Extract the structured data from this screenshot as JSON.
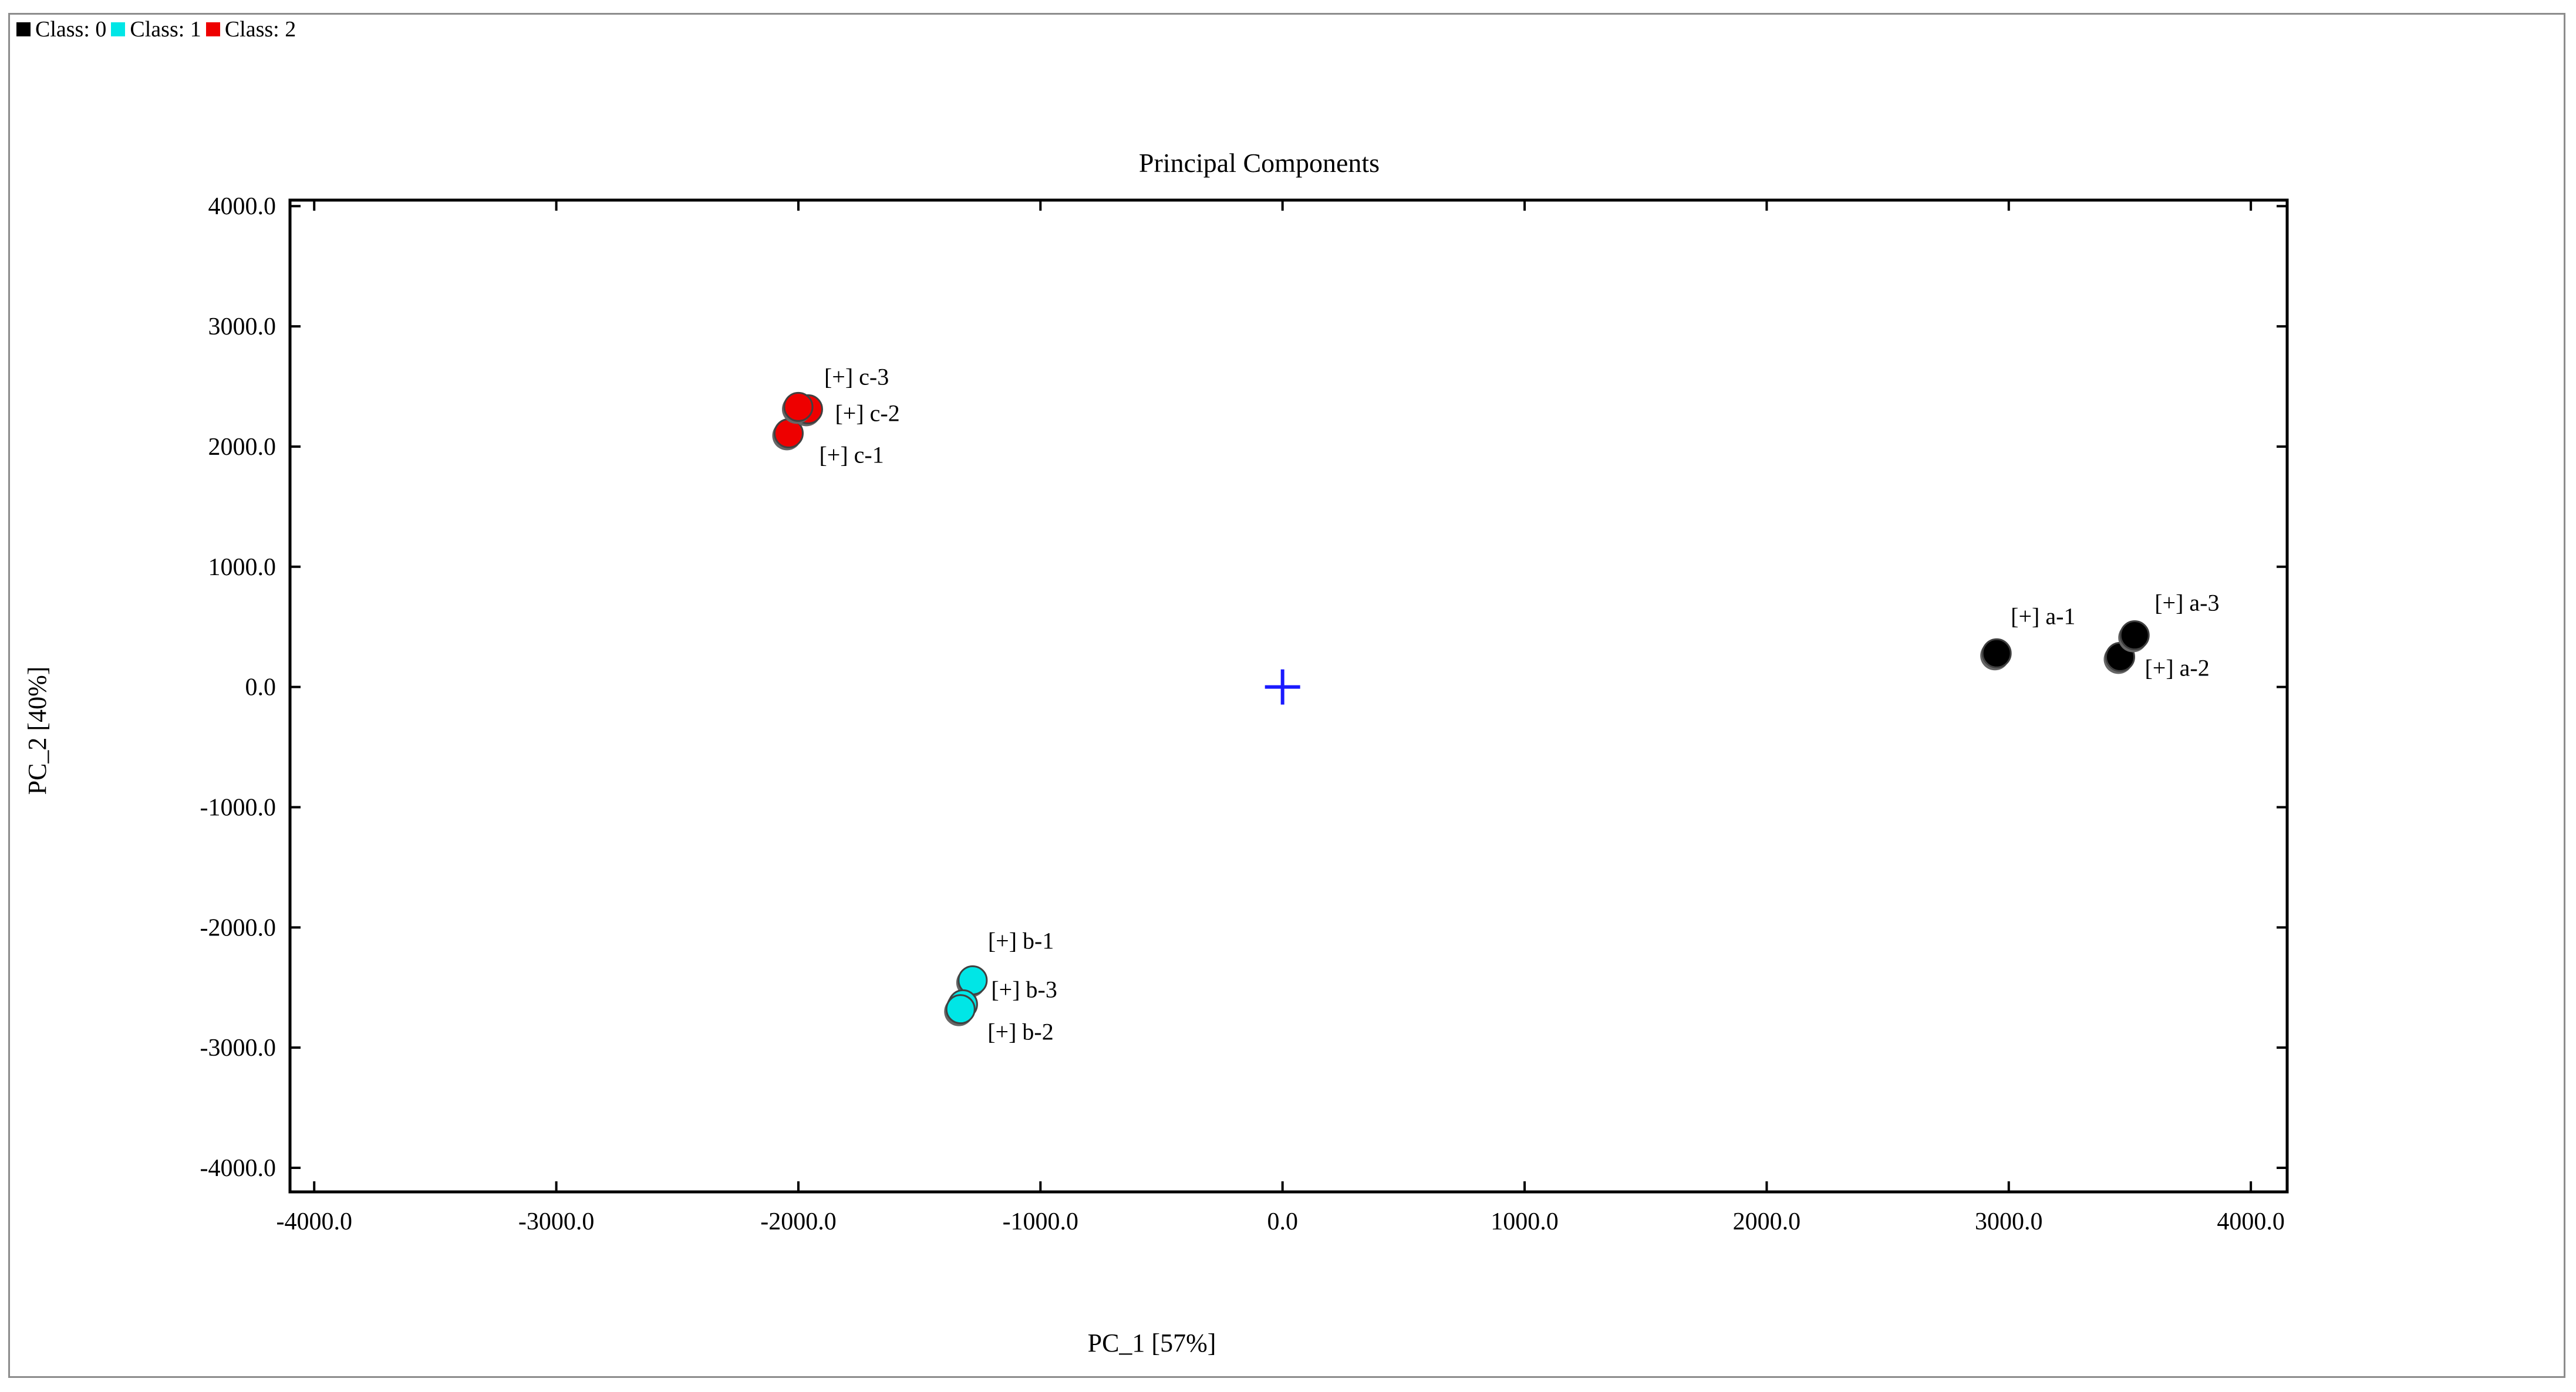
{
  "legend": [
    {
      "label": "Class: 0",
      "color": "#000000"
    },
    {
      "label": "Class: 1",
      "color": "#00e6e6"
    },
    {
      "label": "Class: 2",
      "color": "#ee0000"
    }
  ],
  "chart_data": {
    "type": "scatter",
    "title": "Principal Components",
    "xlabel": "PC_1 [57%]",
    "ylabel": "PC_2 [40%]",
    "xlim": [
      -4100,
      4150
    ],
    "ylim": [
      -4200,
      4050
    ],
    "xticks": [
      -4000,
      -3000,
      -2000,
      -1000,
      0,
      1000,
      2000,
      3000,
      4000
    ],
    "yticks": [
      -4000,
      -3000,
      -2000,
      -1000,
      0,
      1000,
      2000,
      3000,
      4000
    ],
    "xtick_labels": [
      "-4000.0",
      "-3000.0",
      "-2000.0",
      "-1000.0",
      "0.0",
      "1000.0",
      "2000.0",
      "3000.0",
      "4000.0"
    ],
    "ytick_labels": [
      "-4000.0",
      "-3000.0",
      "-2000.0",
      "-1000.0",
      "0.0",
      "1000.0",
      "2000.0",
      "3000.0",
      "4000.0"
    ],
    "grid": false,
    "origin_marker": {
      "x": 0,
      "y": 0,
      "color": "#1a1aff"
    },
    "series": [
      {
        "name": "Class: 0",
        "color": "#000000",
        "points": [
          {
            "label": "[+] a-1",
            "x": 2950,
            "y": 280
          },
          {
            "label": "[+] a-2",
            "x": 3460,
            "y": 250
          },
          {
            "label": "[+] a-3",
            "x": 3520,
            "y": 430
          }
        ]
      },
      {
        "name": "Class: 1",
        "color": "#00e6e6",
        "points": [
          {
            "label": "[+] b-1",
            "x": -1280,
            "y": -2440
          },
          {
            "label": "[+] b-3",
            "x": -1320,
            "y": -2640
          },
          {
            "label": "[+] b-2",
            "x": -1330,
            "y": -2680
          }
        ]
      },
      {
        "name": "Class: 2",
        "color": "#ee0000",
        "points": [
          {
            "label": "[+] c-1",
            "x": -2040,
            "y": 2110
          },
          {
            "label": "[+] c-2",
            "x": -1960,
            "y": 2310
          },
          {
            "label": "[+] c-3",
            "x": -2000,
            "y": 2330
          }
        ]
      }
    ]
  }
}
